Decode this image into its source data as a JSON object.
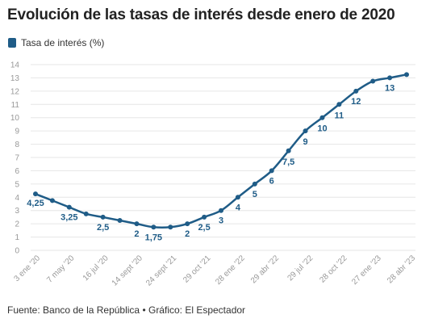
{
  "title": "Evolución de las tasas de interés desde enero de 2020",
  "source": "Fuente: Banco de la República • Gráfico: El Espectador",
  "colors": {
    "series": "#1f5c87",
    "grid": "#e6e6e6",
    "axis_text": "#999999"
  },
  "chart_data": {
    "type": "line",
    "title": "Evolución de las tasas de interés desde enero de 2020",
    "xlabel": "",
    "ylabel": "",
    "ylim": [
      0,
      14
    ],
    "yticks": [
      0,
      1,
      2,
      3,
      4,
      5,
      6,
      7,
      8,
      9,
      10,
      11,
      12,
      13,
      14
    ],
    "grid": true,
    "legend": "top-left",
    "x_tick_labels": [
      "3 ene '20",
      "7 may '20",
      "16 jul '20",
      "14 sept '20",
      "24 sept '21",
      "29 oct '21",
      "28 ene '22",
      "29 abr '22",
      "29 jul '22",
      "28 oct '22",
      "27 ene '23",
      "28 abr '23"
    ],
    "series": [
      {
        "name": "Tasa de interés (%)",
        "values": [
          4.25,
          3.75,
          3.25,
          2.75,
          2.5,
          2.25,
          2,
          1.75,
          1.75,
          2,
          2.5,
          3,
          4,
          5,
          6,
          7.5,
          9,
          10,
          11,
          12,
          12.75,
          13,
          13.25
        ],
        "labels": [
          "4,25",
          "",
          "3,25",
          "",
          "2,5",
          "",
          "2",
          "1,75",
          "",
          "2",
          "2,5",
          "3",
          "4",
          "5",
          "6",
          "7,5",
          "9",
          "10",
          "11",
          "12",
          "",
          "13",
          ""
        ]
      }
    ]
  }
}
